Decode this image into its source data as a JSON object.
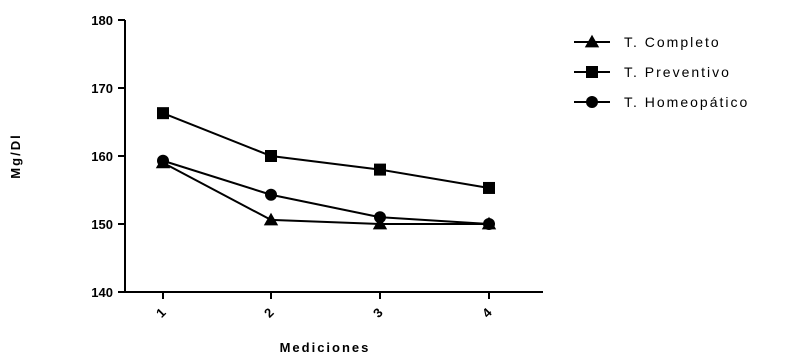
{
  "chart_data": {
    "type": "line",
    "title": "",
    "xlabel": "Mediciones",
    "ylabel": "Mg/Dl",
    "categories": [
      "1",
      "2",
      "3",
      "4"
    ],
    "ylim": [
      140,
      180
    ],
    "yticks": [
      "140",
      "150",
      "160",
      "170",
      "180"
    ],
    "grid": false,
    "legend_position": "top-right",
    "series": [
      {
        "name": "T. Completo",
        "marker": "triangle",
        "color": "#000000",
        "values": [
          159.0,
          150.6,
          150.0,
          150.0
        ]
      },
      {
        "name": "T. Preventivo",
        "marker": "square",
        "color": "#000000",
        "values": [
          166.3,
          160.0,
          158.0,
          155.3
        ]
      },
      {
        "name": "T. Homeopático",
        "marker": "circle",
        "color": "#000000",
        "values": [
          159.3,
          154.3,
          151.0,
          150.0
        ]
      }
    ]
  }
}
